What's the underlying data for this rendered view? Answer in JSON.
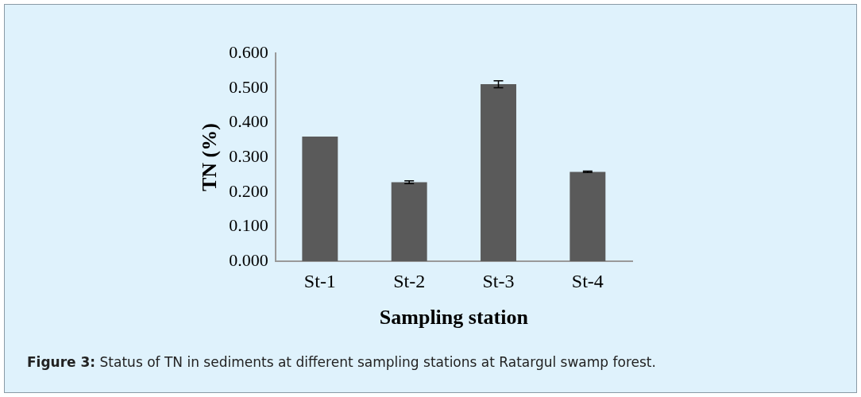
{
  "chart_data": {
    "type": "bar",
    "categories": [
      "St-1",
      "St-2",
      "St-3",
      "St-4"
    ],
    "values": [
      0.36,
      0.228,
      0.511,
      0.258
    ],
    "errors": [
      null,
      0.004,
      0.01,
      0.002
    ],
    "color": "#5a5a5a",
    "xlabel": "Sampling station",
    "ylabel": "TN (%)",
    "ylim": [
      0,
      0.6
    ],
    "yticks": [
      {
        "value": 0,
        "label": "0.000"
      },
      {
        "value": 0.1,
        "label": "0.100"
      },
      {
        "value": 0.2,
        "label": "0.200"
      },
      {
        "value": 0.3,
        "label": "0.300"
      },
      {
        "value": 0.4,
        "label": "0.400"
      },
      {
        "value": 0.5,
        "label": "0.500"
      },
      {
        "value": 0.6,
        "label": "0.600"
      }
    ],
    "grid": false,
    "legend": false,
    "annotations": [
      "Figure 3: Status of TN in sediments at different sampling stations at Ratargul swamp forest."
    ]
  }
}
